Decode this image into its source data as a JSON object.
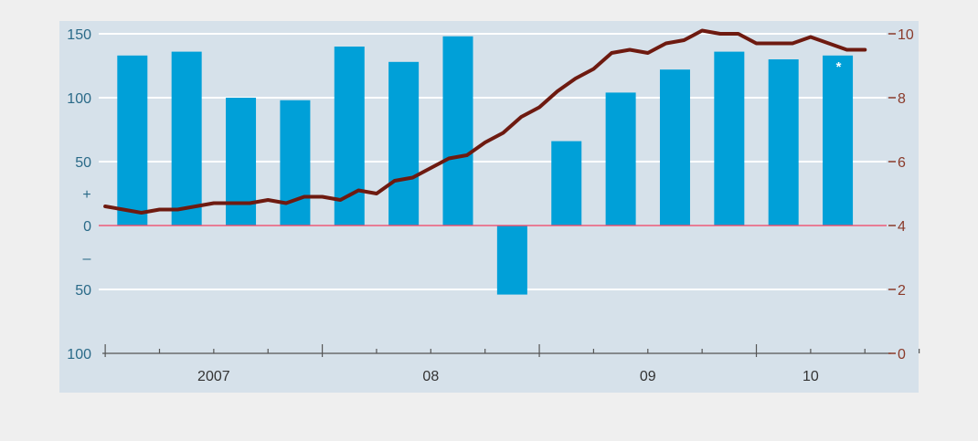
{
  "chart_data": {
    "type": "bar",
    "colors": {
      "bars": "#00a0d8",
      "line": "#6e1a10",
      "plot_bg": "#d6e1ea",
      "page_bg": "#efefef",
      "left_axis_text": "#2a6a88",
      "right_axis_text": "#8a3a2a",
      "zero_line": "#e05070"
    },
    "left_axis": {
      "ylim": [
        -100,
        150
      ],
      "ticks": [
        {
          "value": 150,
          "label": "150"
        },
        {
          "value": 100,
          "label": "100"
        },
        {
          "value": 50,
          "label": "50"
        },
        {
          "value": 0,
          "label": "0"
        },
        {
          "value": -50,
          "label": "50"
        },
        {
          "value": -100,
          "label": "100"
        }
      ],
      "sign_labels": [
        {
          "value": 25,
          "label": "+"
        },
        {
          "value": -25,
          "label": "–"
        }
      ]
    },
    "right_axis": {
      "ylim": [
        0,
        10
      ],
      "ticks": [
        {
          "value": 10,
          "label": "10"
        },
        {
          "value": 8,
          "label": "8"
        },
        {
          "value": 6,
          "label": "6"
        },
        {
          "value": 4,
          "label": "4"
        },
        {
          "value": 2,
          "label": "2"
        },
        {
          "value": 0,
          "label": "0"
        }
      ]
    },
    "x_axis": {
      "year_labels": [
        {
          "label": "2007",
          "x": 2007.5
        },
        {
          "label": "08",
          "x": 2008.5
        },
        {
          "label": "09",
          "x": 2009.5
        },
        {
          "label": "10",
          "x": 2010.25
        }
      ]
    },
    "bars": {
      "x": [
        2007.125,
        2007.375,
        2007.625,
        2007.875,
        2008.125,
        2008.375,
        2008.625,
        2008.875,
        2009.125,
        2009.375,
        2009.625,
        2009.875,
        2010.125,
        2010.375
      ],
      "values": [
        133,
        136,
        100,
        98,
        140,
        128,
        148,
        -54,
        66,
        104,
        122,
        136,
        130,
        133
      ],
      "annotation": {
        "label": "*",
        "bar_index": 13
      }
    },
    "line": {
      "x_start": 2007.0,
      "x_step": 0.0833333,
      "values": [
        4.6,
        4.5,
        4.4,
        4.5,
        4.5,
        4.6,
        4.7,
        4.7,
        4.7,
        4.8,
        4.7,
        4.9,
        4.9,
        4.8,
        5.1,
        5.0,
        5.4,
        5.5,
        5.8,
        6.1,
        6.2,
        6.6,
        6.9,
        7.4,
        7.7,
        8.2,
        8.6,
        8.9,
        9.4,
        9.5,
        9.4,
        9.7,
        9.8,
        10.1,
        10.0,
        10.0,
        9.7,
        9.7,
        9.7,
        9.9,
        9.7,
        9.5,
        9.5
      ]
    }
  }
}
